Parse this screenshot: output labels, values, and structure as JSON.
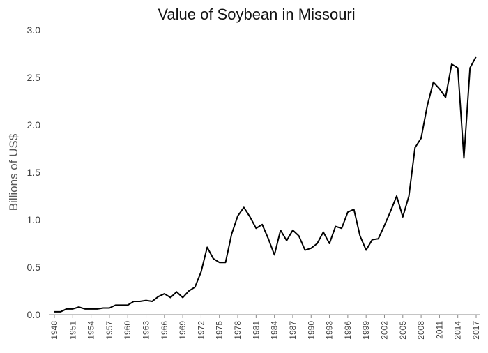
{
  "chart_data": {
    "type": "line",
    "title": "Value of Soybean in Missouri",
    "xlabel": "",
    "ylabel": "Billions of US$",
    "ylim": [
      0,
      3.0
    ],
    "yticks": [
      "0.0",
      "0.5",
      "1.0",
      "1.5",
      "2.0",
      "2.5",
      "3.0"
    ],
    "xticks": [
      "1948",
      "1951",
      "1954",
      "1957",
      "1960",
      "1963",
      "1966",
      "1969",
      "1972",
      "1975",
      "1978",
      "1981",
      "1984",
      "1987",
      "1990",
      "1993",
      "1996",
      "1999",
      "2002",
      "2005",
      "2008",
      "2011",
      "2014",
      "2017"
    ],
    "grid": false,
    "legend": "none",
    "line_color": "#000000",
    "x": [
      1948,
      1949,
      1950,
      1951,
      1952,
      1953,
      1954,
      1955,
      1956,
      1957,
      1958,
      1959,
      1960,
      1961,
      1962,
      1963,
      1964,
      1965,
      1966,
      1967,
      1968,
      1969,
      1970,
      1971,
      1972,
      1973,
      1974,
      1975,
      1976,
      1977,
      1978,
      1979,
      1980,
      1981,
      1982,
      1983,
      1984,
      1985,
      1986,
      1987,
      1988,
      1989,
      1990,
      1991,
      1992,
      1993,
      1994,
      1995,
      1996,
      1997,
      1998,
      1999,
      2000,
      2001,
      2002,
      2003,
      2004,
      2005,
      2006,
      2007,
      2008,
      2009,
      2010,
      2011,
      2012,
      2013,
      2014,
      2015,
      2016,
      2017
    ],
    "values": [
      0.03,
      0.03,
      0.06,
      0.06,
      0.08,
      0.06,
      0.06,
      0.06,
      0.07,
      0.07,
      0.1,
      0.1,
      0.1,
      0.14,
      0.14,
      0.15,
      0.14,
      0.19,
      0.22,
      0.18,
      0.24,
      0.18,
      0.25,
      0.29,
      0.45,
      0.71,
      0.59,
      0.55,
      0.55,
      0.85,
      1.04,
      1.13,
      1.03,
      0.91,
      0.95,
      0.8,
      0.63,
      0.89,
      0.78,
      0.89,
      0.83,
      0.68,
      0.7,
      0.75,
      0.87,
      0.75,
      0.93,
      0.91,
      1.08,
      1.11,
      0.83,
      0.68,
      0.79,
      0.8,
      0.94,
      1.09,
      1.25,
      1.03,
      1.25,
      1.76,
      1.86,
      2.2,
      2.45,
      2.38,
      2.29,
      2.64,
      2.6,
      1.65,
      2.6,
      2.72
    ]
  }
}
